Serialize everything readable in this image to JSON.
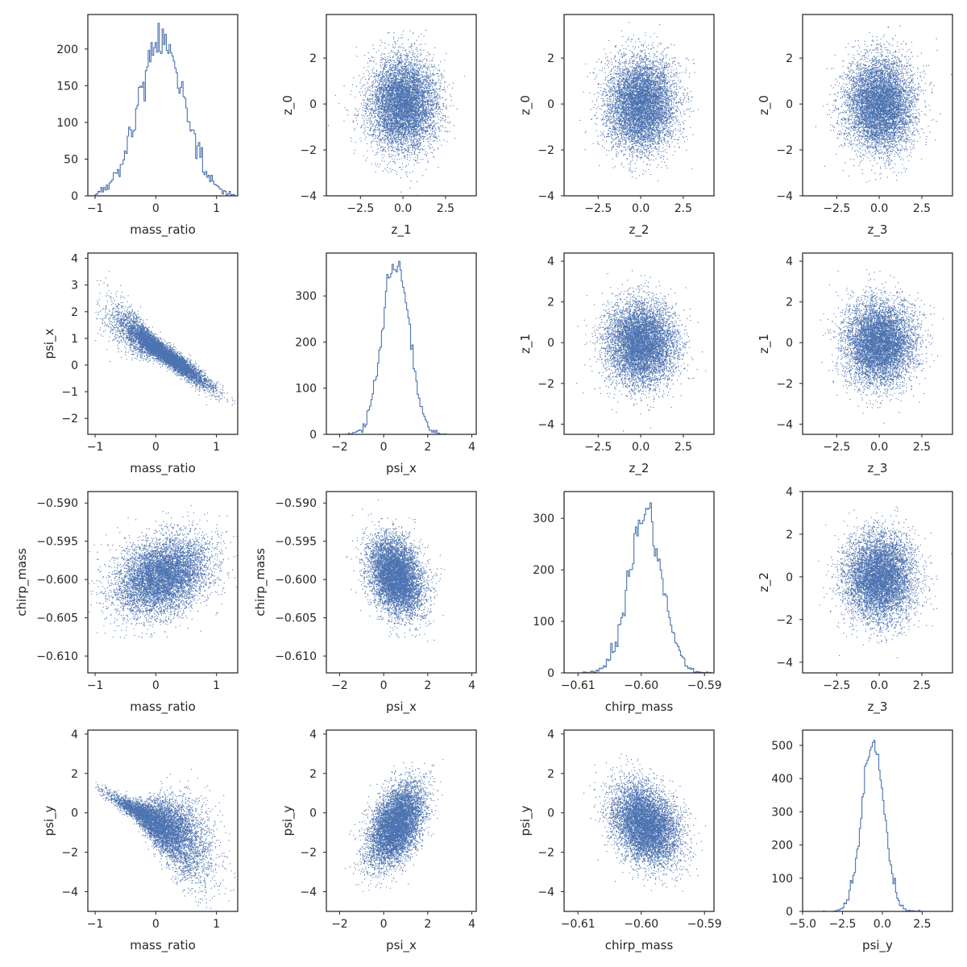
{
  "colors": {
    "series": "#4c72b0",
    "axes": "#262626"
  },
  "chart_data": [
    {
      "row": 0,
      "col": 0,
      "type": "histogram",
      "xlabel": "mass_ratio",
      "ylabel": "",
      "xlim": [
        -1.12,
        1.35
      ],
      "ylim": [
        0,
        247
      ],
      "xticks": [
        {
          "v": -1,
          "label": "−1"
        },
        {
          "v": 0,
          "label": "0"
        },
        {
          "v": 1,
          "label": "1"
        }
      ],
      "yticks": [
        {
          "v": 0,
          "label": "0"
        },
        {
          "v": 50,
          "label": "50"
        },
        {
          "v": 100,
          "label": "100"
        },
        {
          "v": 150,
          "label": "150"
        },
        {
          "v": 200,
          "label": "200"
        }
      ],
      "dist": {
        "kind": "hist",
        "n": 10000,
        "mean": 0.1,
        "std": 0.38,
        "range": [
          -1,
          1.3
        ],
        "bins": 100,
        "peak": 235
      }
    },
    {
      "row": 0,
      "col": 1,
      "type": "scatter",
      "xlabel": "z_1",
      "ylabel": "z_0",
      "xlim": [
        -4.5,
        4.3
      ],
      "ylim": [
        -4.0,
        3.9
      ],
      "xticks": [
        {
          "v": -2.5,
          "label": "−2.5"
        },
        {
          "v": 0,
          "label": "0.0"
        },
        {
          "v": 2.5,
          "label": "2.5"
        }
      ],
      "yticks": [
        {
          "v": -4,
          "label": "−4"
        },
        {
          "v": -2,
          "label": "−2"
        },
        {
          "v": 0,
          "label": "0"
        },
        {
          "v": 2,
          "label": "2"
        }
      ],
      "dist": {
        "kind": "gauss",
        "n": 7000,
        "mx": 0,
        "sx": 1,
        "my": 0,
        "sy": 1,
        "rho": 0
      }
    },
    {
      "row": 0,
      "col": 2,
      "type": "scatter",
      "xlabel": "z_2",
      "ylabel": "z_0",
      "xlim": [
        -4.5,
        4.3
      ],
      "ylim": [
        -4.0,
        3.9
      ],
      "xticks": [
        {
          "v": -2.5,
          "label": "−2.5"
        },
        {
          "v": 0,
          "label": "0.0"
        },
        {
          "v": 2.5,
          "label": "2.5"
        }
      ],
      "yticks": [
        {
          "v": -4,
          "label": "−4"
        },
        {
          "v": -2,
          "label": "−2"
        },
        {
          "v": 0,
          "label": "0"
        },
        {
          "v": 2,
          "label": "2"
        }
      ],
      "dist": {
        "kind": "gauss",
        "n": 7000,
        "mx": 0,
        "sx": 1,
        "my": 0,
        "sy": 1,
        "rho": 0
      }
    },
    {
      "row": 0,
      "col": 3,
      "type": "scatter",
      "xlabel": "z_3",
      "ylabel": "z_0",
      "xlim": [
        -4.5,
        4.3
      ],
      "ylim": [
        -4.0,
        3.9
      ],
      "xticks": [
        {
          "v": -2.5,
          "label": "−2.5"
        },
        {
          "v": 0,
          "label": "0.0"
        },
        {
          "v": 2.5,
          "label": "2.5"
        }
      ],
      "yticks": [
        {
          "v": -4,
          "label": "−4"
        },
        {
          "v": -2,
          "label": "−2"
        },
        {
          "v": 0,
          "label": "0"
        },
        {
          "v": 2,
          "label": "2"
        }
      ],
      "dist": {
        "kind": "gauss",
        "n": 7000,
        "mx": 0,
        "sx": 1,
        "my": 0,
        "sy": 1,
        "rho": 0
      }
    },
    {
      "row": 1,
      "col": 0,
      "type": "scatter",
      "xlabel": "mass_ratio",
      "ylabel": "psi_x",
      "xlim": [
        -1.12,
        1.35
      ],
      "ylim": [
        -2.6,
        4.2
      ],
      "xticks": [
        {
          "v": -1,
          "label": "−1"
        },
        {
          "v": 0,
          "label": "0"
        },
        {
          "v": 1,
          "label": "1"
        }
      ],
      "yticks": [
        {
          "v": -2,
          "label": "−2"
        },
        {
          "v": -1,
          "label": "−1"
        },
        {
          "v": 0,
          "label": "0"
        },
        {
          "v": 1,
          "label": "1"
        },
        {
          "v": 2,
          "label": "2"
        },
        {
          "v": 3,
          "label": "3"
        },
        {
          "v": 4,
          "label": "4"
        }
      ],
      "dist": {
        "kind": "trend",
        "n": 7000,
        "mx": 0.1,
        "sx": 0.38,
        "xmin": -1,
        "xmax": 1.3,
        "a": 0.65,
        "b": -1.6,
        "s0": 0.18,
        "s1": -0.5,
        "smin": 0.18
      }
    },
    {
      "row": 1,
      "col": 1,
      "type": "histogram",
      "xlabel": "psi_x",
      "ylabel": "",
      "xlim": [
        -2.6,
        4.2
      ],
      "ylim": [
        0,
        393
      ],
      "xticks": [
        {
          "v": -2,
          "label": "−2"
        },
        {
          "v": 0,
          "label": "0"
        },
        {
          "v": 2,
          "label": "2"
        },
        {
          "v": 4,
          "label": "4"
        }
      ],
      "yticks": [
        {
          "v": 0,
          "label": "0"
        },
        {
          "v": 100,
          "label": "100"
        },
        {
          "v": 200,
          "label": "200"
        },
        {
          "v": 300,
          "label": "300"
        }
      ],
      "dist": {
        "kind": "hist",
        "n": 10000,
        "mean": 0.55,
        "std": 0.6,
        "range": [
          -2.2,
          3.8
        ],
        "bins": 100,
        "peak": 375
      }
    },
    {
      "row": 1,
      "col": 2,
      "type": "scatter",
      "xlabel": "z_2",
      "ylabel": "z_1",
      "xlim": [
        -4.5,
        4.3
      ],
      "ylim": [
        -4.5,
        4.4
      ],
      "xticks": [
        {
          "v": -2.5,
          "label": "−2.5"
        },
        {
          "v": 0,
          "label": "0.0"
        },
        {
          "v": 2.5,
          "label": "2.5"
        }
      ],
      "yticks": [
        {
          "v": -4,
          "label": "−4"
        },
        {
          "v": -2,
          "label": "−2"
        },
        {
          "v": 0,
          "label": "0"
        },
        {
          "v": 2,
          "label": "2"
        },
        {
          "v": 4,
          "label": "4"
        }
      ],
      "dist": {
        "kind": "gauss",
        "n": 7000,
        "mx": 0,
        "sx": 1,
        "my": 0,
        "sy": 1,
        "rho": 0
      }
    },
    {
      "row": 1,
      "col": 3,
      "type": "scatter",
      "xlabel": "z_3",
      "ylabel": "z_1",
      "xlim": [
        -4.5,
        4.3
      ],
      "ylim": [
        -4.5,
        4.4
      ],
      "xticks": [
        {
          "v": -2.5,
          "label": "−2.5"
        },
        {
          "v": 0,
          "label": "0.0"
        },
        {
          "v": 2.5,
          "label": "2.5"
        }
      ],
      "yticks": [
        {
          "v": -4,
          "label": "−4"
        },
        {
          "v": -2,
          "label": "−2"
        },
        {
          "v": 0,
          "label": "0"
        },
        {
          "v": 2,
          "label": "2"
        },
        {
          "v": 4,
          "label": "4"
        }
      ],
      "dist": {
        "kind": "gauss",
        "n": 7000,
        "mx": 0,
        "sx": 1,
        "my": 0,
        "sy": 1,
        "rho": 0
      }
    },
    {
      "row": 2,
      "col": 0,
      "type": "scatter",
      "xlabel": "mass_ratio",
      "ylabel": "chirp_mass",
      "xlim": [
        -1.12,
        1.35
      ],
      "ylim": [
        -0.6122,
        -0.5885
      ],
      "xticks": [
        {
          "v": -1,
          "label": "−1"
        },
        {
          "v": 0,
          "label": "0"
        },
        {
          "v": 1,
          "label": "1"
        }
      ],
      "yticks": [
        {
          "v": -0.61,
          "label": "−0.610"
        },
        {
          "v": -0.605,
          "label": "−0.605"
        },
        {
          "v": -0.6,
          "label": "−0.600"
        },
        {
          "v": -0.595,
          "label": "−0.595"
        },
        {
          "v": -0.59,
          "label": "−0.590"
        }
      ],
      "dist": {
        "kind": "gauss",
        "n": 7000,
        "mx": 0.1,
        "sx": 0.38,
        "my": -0.5995,
        "sy": 0.0025,
        "rho": 0.3
      }
    },
    {
      "row": 2,
      "col": 1,
      "type": "scatter",
      "xlabel": "psi_x",
      "ylabel": "chirp_mass",
      "xlim": [
        -2.6,
        4.2
      ],
      "ylim": [
        -0.6122,
        -0.5885
      ],
      "xticks": [
        {
          "v": -2,
          "label": "−2"
        },
        {
          "v": 0,
          "label": "0"
        },
        {
          "v": 2,
          "label": "2"
        },
        {
          "v": 4,
          "label": "4"
        }
      ],
      "yticks": [
        {
          "v": -0.61,
          "label": "−0.610"
        },
        {
          "v": -0.605,
          "label": "−0.605"
        },
        {
          "v": -0.6,
          "label": "−0.600"
        },
        {
          "v": -0.595,
          "label": "−0.595"
        },
        {
          "v": -0.59,
          "label": "−0.590"
        }
      ],
      "dist": {
        "kind": "gauss",
        "n": 7000,
        "mx": 0.55,
        "sx": 0.6,
        "my": -0.5995,
        "sy": 0.0025,
        "rho": -0.3
      }
    },
    {
      "row": 2,
      "col": 2,
      "type": "histogram",
      "xlabel": "chirp_mass",
      "ylabel": "",
      "xlim": [
        -0.6122,
        -0.5885
      ],
      "ylim": [
        0,
        352
      ],
      "xticks": [
        {
          "v": -0.61,
          "label": "−0.61"
        },
        {
          "v": -0.6,
          "label": "−0.60"
        },
        {
          "v": -0.59,
          "label": "−0.59"
        }
      ],
      "yticks": [
        {
          "v": 0,
          "label": "0"
        },
        {
          "v": 100,
          "label": "100"
        },
        {
          "v": 200,
          "label": "200"
        },
        {
          "v": 300,
          "label": "300"
        }
      ],
      "dist": {
        "kind": "hist",
        "n": 10000,
        "mean": -0.5993,
        "std": 0.0026,
        "range": [
          -0.6115,
          -0.5885
        ],
        "bins": 100,
        "peak": 330
      }
    },
    {
      "row": 2,
      "col": 3,
      "type": "scatter",
      "xlabel": "z_3",
      "ylabel": "z_2",
      "xlim": [
        -4.5,
        4.3
      ],
      "ylim": [
        -4.5,
        4.0
      ],
      "xticks": [
        {
          "v": -2.5,
          "label": "−2.5"
        },
        {
          "v": 0,
          "label": "0.0"
        },
        {
          "v": 2.5,
          "label": "2.5"
        }
      ],
      "yticks": [
        {
          "v": -4,
          "label": "−4"
        },
        {
          "v": -2,
          "label": "−2"
        },
        {
          "v": 0,
          "label": "0"
        },
        {
          "v": 2,
          "label": "2"
        },
        {
          "v": 4,
          "label": "4"
        }
      ],
      "dist": {
        "kind": "gauss",
        "n": 7000,
        "mx": 0,
        "sx": 1,
        "my": 0,
        "sy": 1,
        "rho": 0
      }
    },
    {
      "row": 3,
      "col": 0,
      "type": "scatter",
      "xlabel": "mass_ratio",
      "ylabel": "psi_y",
      "xlim": [
        -1.12,
        1.35
      ],
      "ylim": [
        -5.0,
        4.2
      ],
      "xticks": [
        {
          "v": -1,
          "label": "−1"
        },
        {
          "v": 0,
          "label": "0"
        },
        {
          "v": 1,
          "label": "1"
        }
      ],
      "yticks": [
        {
          "v": -4,
          "label": "−4"
        },
        {
          "v": -2,
          "label": "−2"
        },
        {
          "v": 0,
          "label": "0"
        },
        {
          "v": 2,
          "label": "2"
        },
        {
          "v": 4,
          "label": "4"
        }
      ],
      "dist": {
        "kind": "trend",
        "n": 7000,
        "mx": 0.1,
        "sx": 0.38,
        "xmin": -1,
        "xmax": 1.3,
        "a": -0.5,
        "b": -1.8,
        "s0": 0.55,
        "s1": 0.9,
        "smin": 0.2
      }
    },
    {
      "row": 3,
      "col": 1,
      "type": "scatter",
      "xlabel": "psi_x",
      "ylabel": "psi_y",
      "xlim": [
        -2.6,
        4.2
      ],
      "ylim": [
        -5.0,
        4.2
      ],
      "xticks": [
        {
          "v": -2,
          "label": "−2"
        },
        {
          "v": 0,
          "label": "0"
        },
        {
          "v": 2,
          "label": "2"
        },
        {
          "v": 4,
          "label": "4"
        }
      ],
      "yticks": [
        {
          "v": -4,
          "label": "−4"
        },
        {
          "v": -2,
          "label": "−2"
        },
        {
          "v": 0,
          "label": "0"
        },
        {
          "v": 2,
          "label": "2"
        },
        {
          "v": 4,
          "label": "4"
        }
      ],
      "dist": {
        "kind": "gauss",
        "n": 7000,
        "mx": 0.55,
        "sx": 0.6,
        "my": -0.6,
        "sy": 1.0,
        "rho": 0.45
      }
    },
    {
      "row": 3,
      "col": 2,
      "type": "scatter",
      "xlabel": "chirp_mass",
      "ylabel": "psi_y",
      "xlim": [
        -0.6122,
        -0.5885
      ],
      "ylim": [
        -5.0,
        4.2
      ],
      "xticks": [
        {
          "v": -0.61,
          "label": "−0.61"
        },
        {
          "v": -0.6,
          "label": "−0.60"
        },
        {
          "v": -0.59,
          "label": "−0.59"
        }
      ],
      "yticks": [
        {
          "v": -4,
          "label": "−4"
        },
        {
          "v": -2,
          "label": "−2"
        },
        {
          "v": 0,
          "label": "0"
        },
        {
          "v": 2,
          "label": "2"
        },
        {
          "v": 4,
          "label": "4"
        }
      ],
      "dist": {
        "kind": "gauss",
        "n": 7000,
        "mx": -0.5993,
        "sx": 0.0026,
        "my": -0.6,
        "sy": 1.0,
        "rho": -0.3
      }
    },
    {
      "row": 3,
      "col": 3,
      "type": "histogram",
      "xlabel": "psi_y",
      "ylabel": "",
      "xlim": [
        -5.0,
        4.4
      ],
      "ylim": [
        0,
        546
      ],
      "xticks": [
        {
          "v": -5,
          "label": "−5.0"
        },
        {
          "v": -2.5,
          "label": "−2.5"
        },
        {
          "v": 0,
          "label": "0.0"
        },
        {
          "v": 2.5,
          "label": "2.5"
        }
      ],
      "yticks": [
        {
          "v": 0,
          "label": "0"
        },
        {
          "v": 100,
          "label": "100"
        },
        {
          "v": 200,
          "label": "200"
        },
        {
          "v": 300,
          "label": "300"
        },
        {
          "v": 400,
          "label": "400"
        },
        {
          "v": 500,
          "label": "500"
        }
      ],
      "dist": {
        "kind": "hist",
        "n": 10000,
        "mean": -0.6,
        "std": 0.7,
        "range": [
          -4.6,
          3.5
        ],
        "bins": 100,
        "peak": 515
      }
    }
  ]
}
